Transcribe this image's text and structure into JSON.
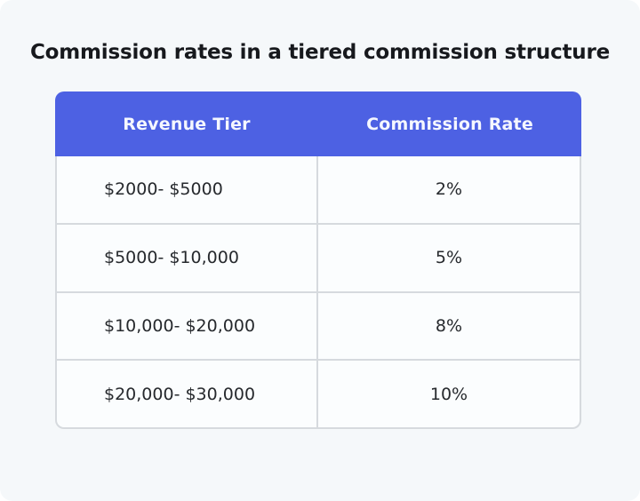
{
  "chart_data": {
    "type": "table",
    "title": "Commission rates in a tiered commission structure",
    "columns": [
      "Revenue Tier",
      "Commission Rate"
    ],
    "rows": [
      [
        "$2000- $5000",
        "2%"
      ],
      [
        "$5000- $10,000",
        "5%"
      ],
      [
        "$10,000- $20,000",
        "8%"
      ],
      [
        "$20,000- $30,000",
        "10%"
      ]
    ]
  },
  "colors": {
    "header_bg": "#4d61e3",
    "header_text": "#f5f7ff",
    "row_bg": "#fbfdfe",
    "border": "#d6dade",
    "page_bg": "#f5f8fa",
    "title_text": "#17191d",
    "cell_text": "#26292d"
  }
}
